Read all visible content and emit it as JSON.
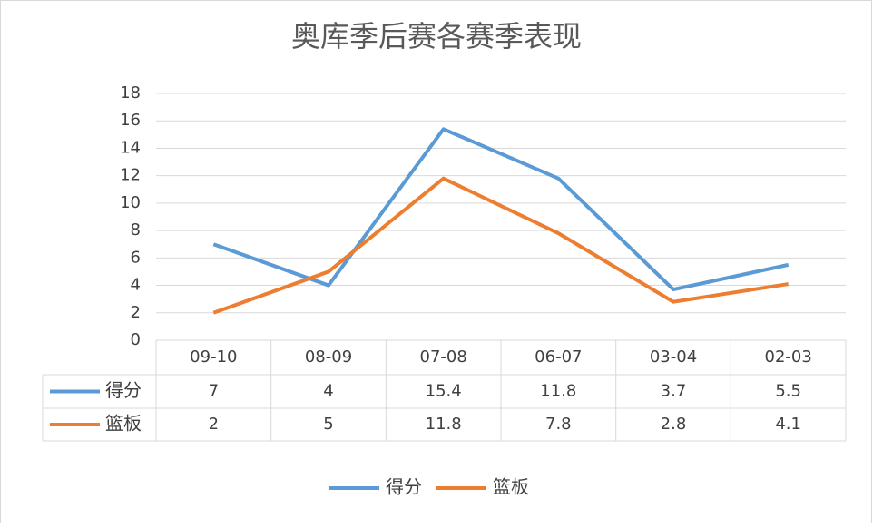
{
  "chart_data": {
    "type": "line",
    "title": "奥库季后赛各赛季表现",
    "categories": [
      "09-10",
      "08-09",
      "07-08",
      "06-07",
      "03-04",
      "02-03"
    ],
    "series": [
      {
        "name": "得分",
        "color": "#5b9bd5",
        "values": [
          7,
          4,
          15.4,
          11.8,
          3.7,
          5.5
        ]
      },
      {
        "name": "篮板",
        "color": "#ed7d31",
        "values": [
          2,
          5,
          11.8,
          7.8,
          2.8,
          4.1
        ]
      }
    ],
    "ylim": [
      0,
      18
    ],
    "yticks": [
      0,
      2,
      4,
      6,
      8,
      10,
      12,
      14,
      16,
      18
    ],
    "grid": true,
    "legend": "bottom"
  }
}
